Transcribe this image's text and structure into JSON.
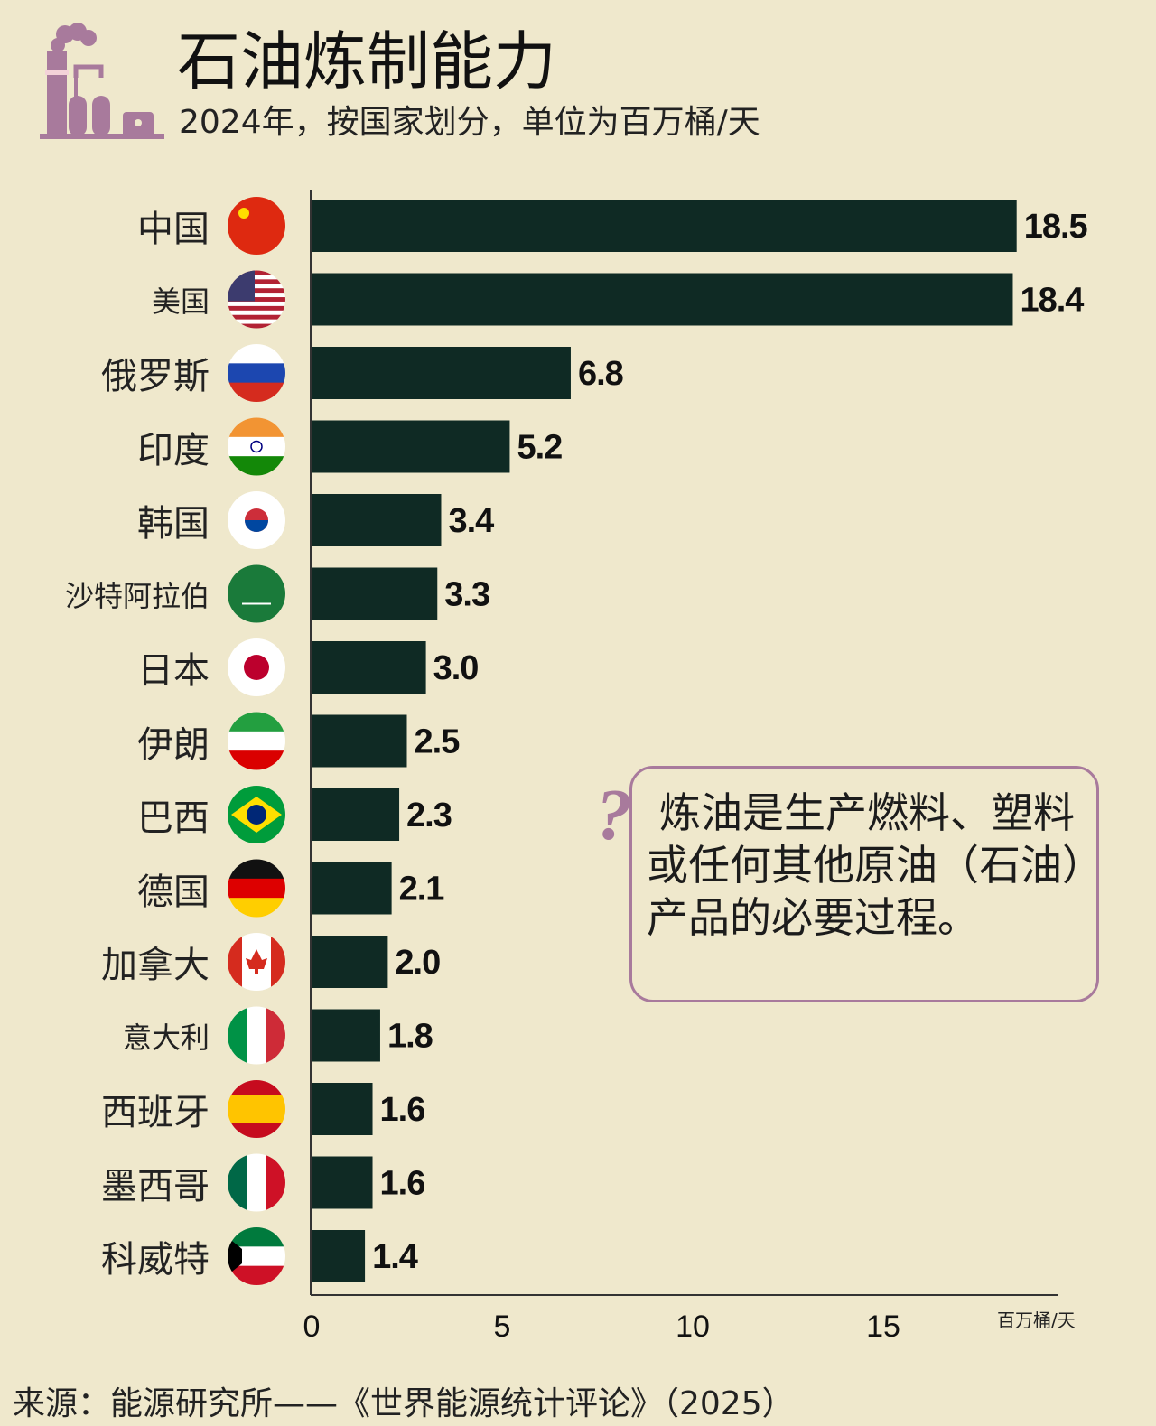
{
  "header": {
    "title": "石油炼制能力",
    "subtitle": "2024年，按国家划分，单位为百万桶/天",
    "logo": "refinery-icon"
  },
  "chart_data": {
    "type": "bar",
    "orientation": "horizontal",
    "categories": [
      "中国",
      "美国",
      "俄罗斯",
      "印度",
      "韩国",
      "沙特阿拉伯",
      "日本",
      "伊朗",
      "巴西",
      "德国",
      "加拿大",
      "意大利",
      "西班牙",
      "墨西哥",
      "科威特"
    ],
    "flags": [
      "flag-china-icon",
      "flag-usa-icon",
      "flag-russia-icon",
      "flag-india-icon",
      "flag-south-korea-icon",
      "flag-saudi-arabia-icon",
      "flag-japan-icon",
      "flag-iran-icon",
      "flag-brazil-icon",
      "flag-germany-icon",
      "flag-canada-icon",
      "flag-italy-icon",
      "flag-spain-icon",
      "flag-mexico-icon",
      "flag-kuwait-icon"
    ],
    "values": [
      18.5,
      18.4,
      6.8,
      5.2,
      3.4,
      3.3,
      3.0,
      2.5,
      2.3,
      2.1,
      2.0,
      1.8,
      1.6,
      1.6,
      1.4
    ],
    "value_labels": [
      "18.5",
      "18.4",
      "6.8",
      "5.2",
      "3.4",
      "3.3",
      "3.0",
      "2.5",
      "2.3",
      "2.1",
      "2.0",
      "1.8",
      "1.6",
      "1.6",
      "1.4"
    ],
    "xticks": [
      "0",
      "5",
      "10",
      "15"
    ],
    "xtick_values": [
      0,
      5,
      10,
      15
    ],
    "xlabel": "百万桶/天",
    "xlim": [
      0,
      19.5
    ],
    "grid": false,
    "bar_color": "#0f2a24",
    "accent_color": "#a87a9c"
  },
  "annotation": {
    "text": "炼油是生产燃料、塑料或任何其他原油（石油）产品的必要过程。",
    "icon": "question-mark-icon",
    "qmark": "?"
  },
  "footer": {
    "source": "来源：能源研究所——《世界能源统计评论》（2025）"
  }
}
